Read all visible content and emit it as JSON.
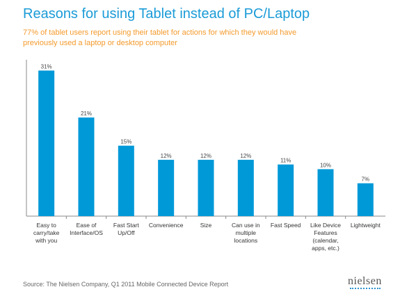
{
  "chart_data": {
    "type": "bar",
    "title": "Reasons for using Tablet instead of PC/Laptop",
    "subtitle": "77% of tablet users report using their tablet for actions for which they would have previously used a laptop or desktop computer",
    "categories": [
      [
        "Easy to",
        "carry/take",
        "with you"
      ],
      [
        "Ease of",
        "Interface/OS"
      ],
      [
        "Fast Start",
        "Up/Off"
      ],
      [
        "Convenience"
      ],
      [
        "Size"
      ],
      [
        "Can use in",
        "multiple",
        "locations"
      ],
      [
        "Fast Speed"
      ],
      [
        "Like Device",
        "Features",
        "(calendar,",
        "apps, etc.)"
      ],
      [
        "Lightweight"
      ]
    ],
    "values": [
      31,
      21,
      15,
      12,
      12,
      12,
      11,
      10,
      7
    ],
    "value_labels": [
      "31%",
      "21%",
      "15%",
      "12%",
      "12%",
      "12%",
      "11%",
      "10%",
      "7%"
    ],
    "ylim": [
      0,
      33
    ],
    "grid": false,
    "bar_color": "#0099d8"
  },
  "source": "Source: The Nielsen Company, Q1 2011 Mobile Connected Device Report",
  "logo_text": "nielsen",
  "colors": {
    "title": "#1a9bd7",
    "subtitle": "#f39a2c",
    "axis": "#888888"
  }
}
